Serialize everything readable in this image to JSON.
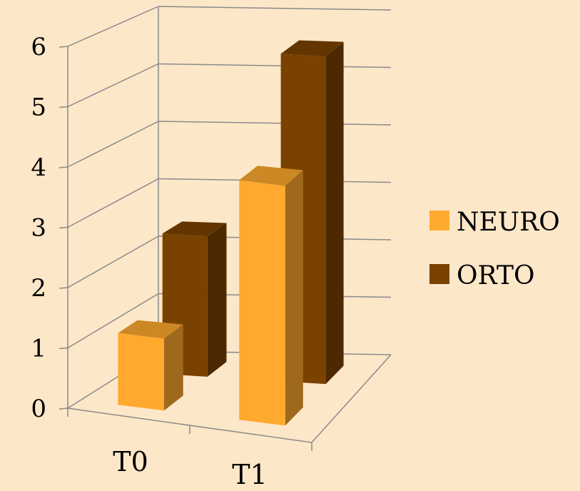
{
  "chart_data": {
    "type": "bar",
    "style": "3d-column",
    "categories": [
      "T0",
      "T1"
    ],
    "series": [
      {
        "name": "NEURO",
        "values": [
          1.2,
          4.0
        ],
        "color": "#ffaa2e"
      },
      {
        "name": "ORTO",
        "values": [
          2.4,
          5.6
        ],
        "color": "#7a4200"
      }
    ],
    "yticks": [
      "0",
      "1",
      "2",
      "3",
      "4",
      "5",
      "6"
    ],
    "ylim": [
      0,
      6
    ],
    "grid": true,
    "legend_position": "right"
  },
  "colors": {
    "background": "#fde7c9",
    "gridline": "#8a8a8a"
  }
}
